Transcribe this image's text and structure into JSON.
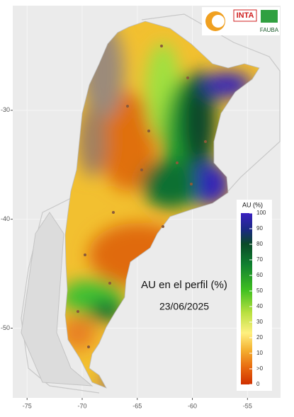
{
  "map": {
    "title": "AU en el perfil (%)",
    "date": "23/06/2025",
    "xticks": [
      -75,
      -70,
      -65,
      -60,
      -55
    ],
    "yticks": [
      -30,
      -40,
      -50
    ],
    "xlim": [
      -76.3,
      -52
    ],
    "ylim": [
      -56.4,
      -20.4
    ],
    "legend": {
      "title": "AU (%)",
      "ticks": [
        100,
        90,
        80,
        70,
        60,
        50,
        40,
        30,
        20,
        10,
        {
          "value": 5,
          "label": ">0"
        },
        0
      ]
    },
    "logos": {
      "inta": "INTA",
      "fauba": "FAUBA"
    }
  }
}
